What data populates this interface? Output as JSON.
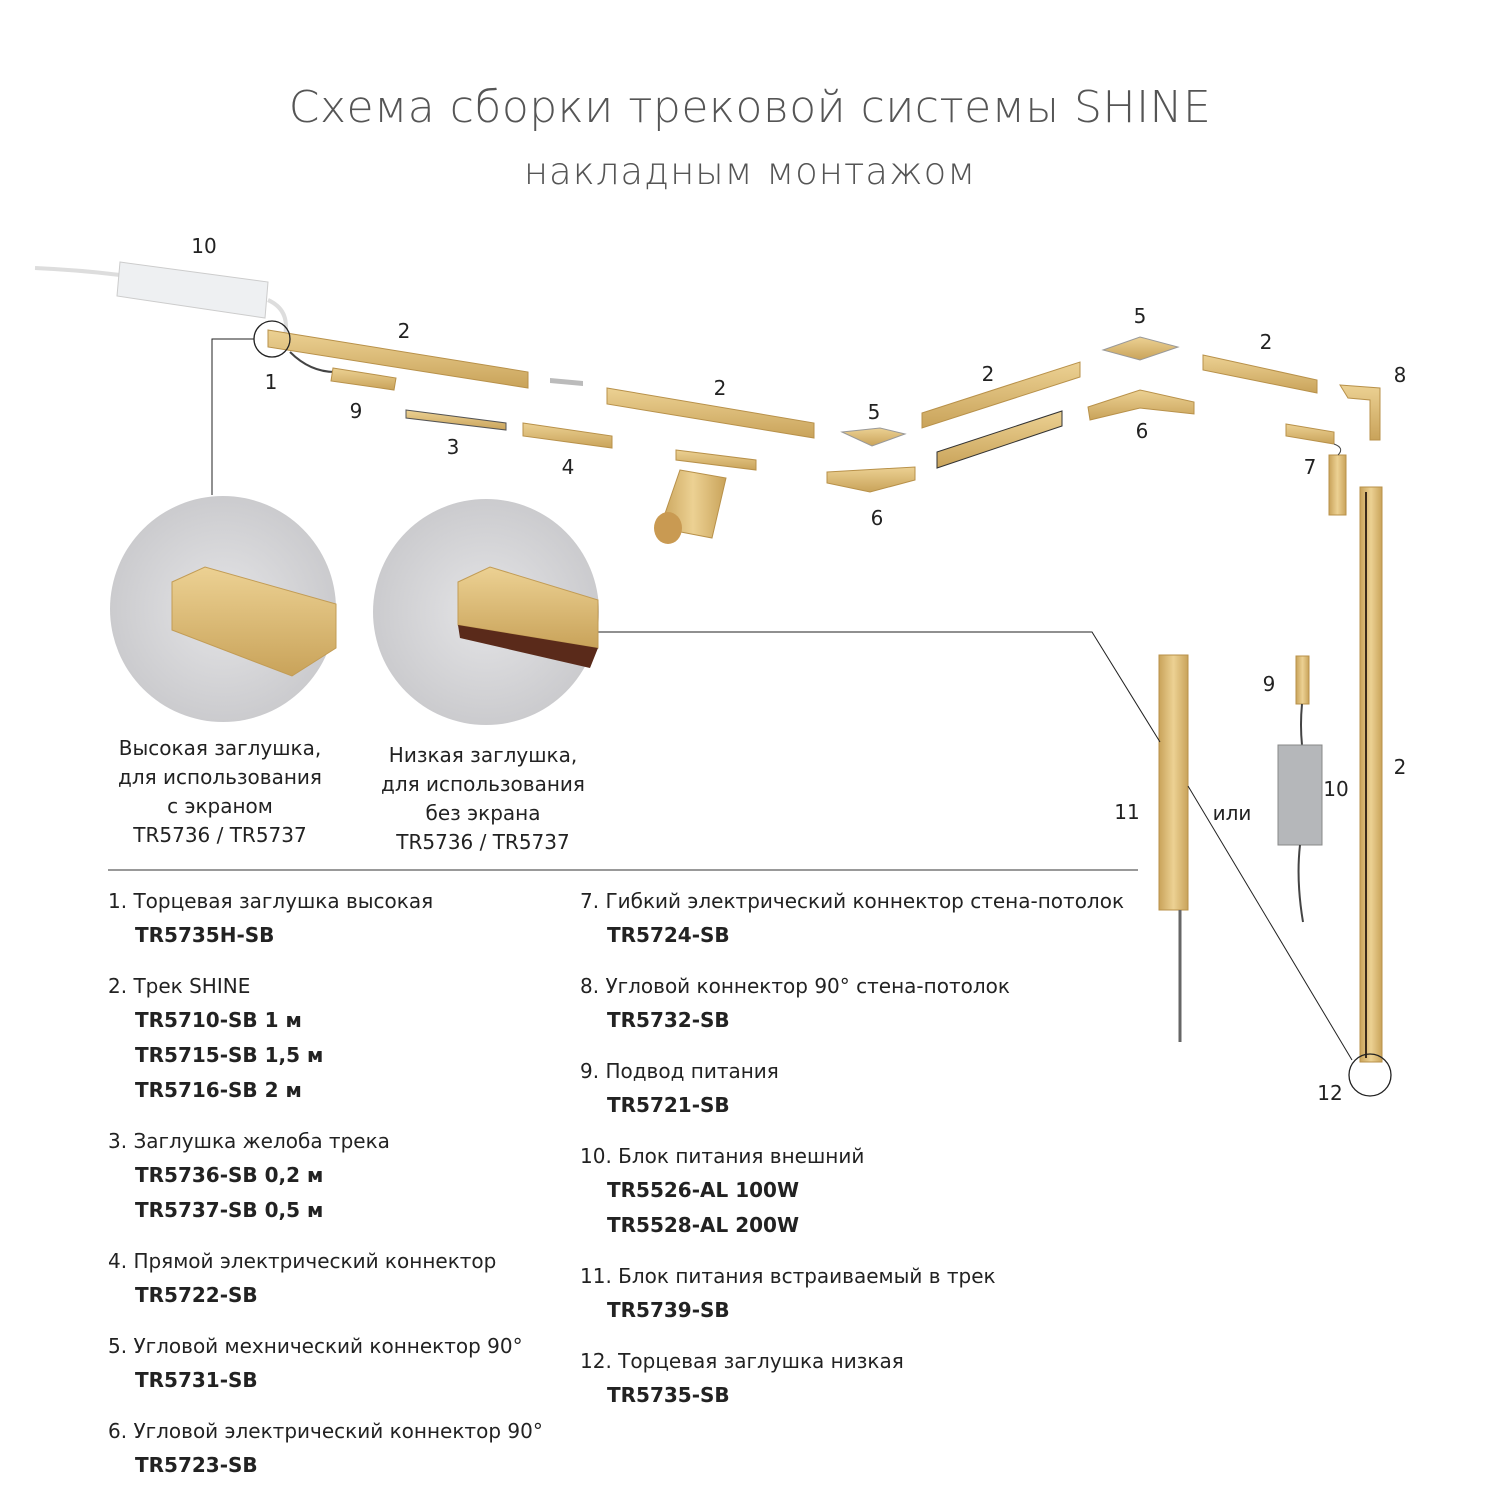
{
  "title": "Схема сборки трековой системы SHINE",
  "subtitle": "накладным монтажом",
  "colors": {
    "gold": "#d9b36b",
    "gold_dark": "#b8914a",
    "text": "#222222",
    "title": "#555555",
    "line": "#333333"
  },
  "callouts": [
    "10",
    "2",
    "1",
    "9",
    "3",
    "4",
    "2",
    "5",
    "6",
    "2",
    "5",
    "6",
    "2",
    "8",
    "7",
    "9",
    "10",
    "2",
    "11",
    "или",
    "12"
  ],
  "details": [
    {
      "caption": [
        "Высокая заглушка,",
        "для использования",
        "с экраном",
        "TR5736 / TR5737"
      ]
    },
    {
      "caption": [
        "Низкая заглушка,",
        "для использования",
        "без экрана",
        "TR5736 / TR5737"
      ]
    }
  ],
  "legend_left": [
    {
      "title": "1. Торцевая заглушка высокая",
      "codes": [
        "TR5735H-SB"
      ]
    },
    {
      "title": "2. Трек SHINE",
      "codes": [
        "TR5710-SB  1 м",
        "TR5715-SB 1,5 м",
        "TR5716-SB 2 м"
      ]
    },
    {
      "title": "3. Заглушка желоба трека",
      "codes": [
        "TR5736-SB  0,2 м",
        "TR5737-SB  0,5 м"
      ]
    },
    {
      "title": "4. Прямой электрический коннектор",
      "codes": [
        "TR5722-SB"
      ]
    },
    {
      "title": "5. Угловой мехнический коннектор 90°",
      "codes": [
        "TR5731-SB"
      ]
    },
    {
      "title": "6. Угловой электрический коннектор 90°",
      "codes": [
        "TR5723-SB"
      ]
    }
  ],
  "legend_right": [
    {
      "title": "7. Гибкий электрический коннектор стена-потолок",
      "codes": [
        "TR5724-SB"
      ]
    },
    {
      "title": "8. Угловой коннектор 90° стена-потолок",
      "codes": [
        "TR5732-SB"
      ]
    },
    {
      "title": "9. Подвод питания",
      "codes": [
        "TR5721-SB"
      ]
    },
    {
      "title": "10. Блок питания внешний",
      "codes": [
        "TR5526-AL 100W",
        "TR5528-AL 200W"
      ]
    },
    {
      "title": "11. Блок питания встраиваемый в трек",
      "codes": [
        "TR5739-SB"
      ]
    },
    {
      "title": "12. Торцевая заглушка низкая",
      "codes": [
        "TR5735-SB"
      ]
    }
  ]
}
